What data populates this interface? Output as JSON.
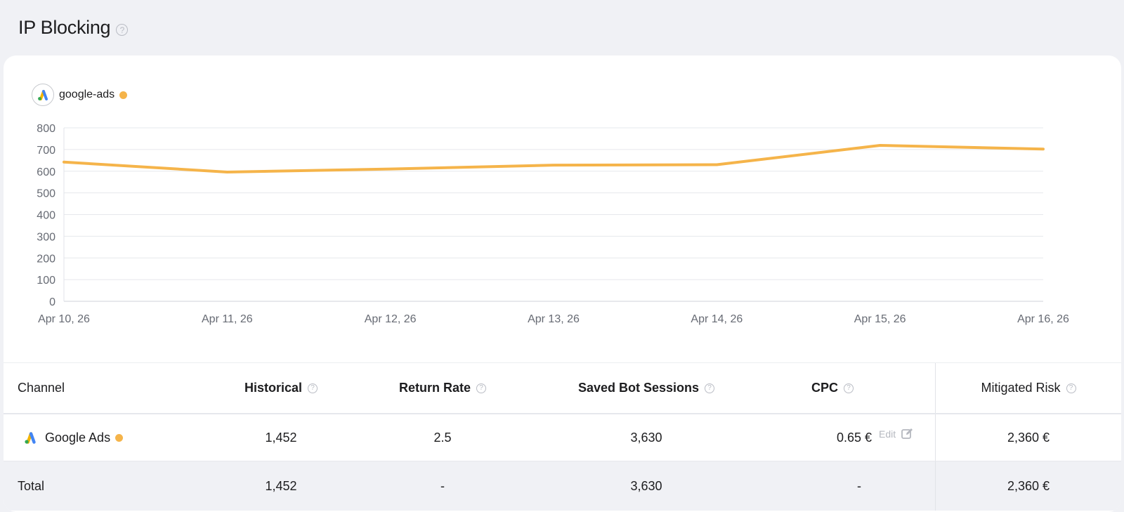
{
  "page": {
    "title": "IP Blocking"
  },
  "legend": {
    "label": "google-ads",
    "color": "#f5b44a",
    "icon": "google-ads-logo-icon"
  },
  "chart_data": {
    "type": "line",
    "categories": [
      "Apr 10, 26",
      "Apr 11, 26",
      "Apr 12, 26",
      "Apr 13, 26",
      "Apr 14, 26",
      "Apr 15, 26",
      "Apr 16, 26"
    ],
    "series": [
      {
        "name": "google-ads",
        "values": [
          642,
          596,
          610,
          628,
          630,
          719,
          702
        ],
        "color": "#f5b44a"
      }
    ],
    "yticks": [
      "0",
      "100",
      "200",
      "300",
      "400",
      "500",
      "600",
      "700",
      "800"
    ],
    "ylim": [
      0,
      800
    ],
    "grid": true,
    "legend_position": "top-left"
  },
  "table": {
    "headers": {
      "channel": "Channel",
      "historical": "Historical",
      "return_rate": "Return Rate",
      "saved_bot_sessions": "Saved Bot Sessions",
      "cpc": "CPC",
      "mitigated_risk": "Mitigated Risk"
    },
    "row": {
      "channel": "Google Ads",
      "historical": "1,452",
      "return_rate": "2.5",
      "saved_bot_sessions": "3,630",
      "cpc": "0.65 €",
      "edit_label": "Edit",
      "mitigated_risk": "2,360 €"
    },
    "total": {
      "label": "Total",
      "historical": "1,452",
      "return_rate": "-",
      "saved_bot_sessions": "3,630",
      "cpc": "-",
      "mitigated_risk": "2,360 €"
    }
  }
}
